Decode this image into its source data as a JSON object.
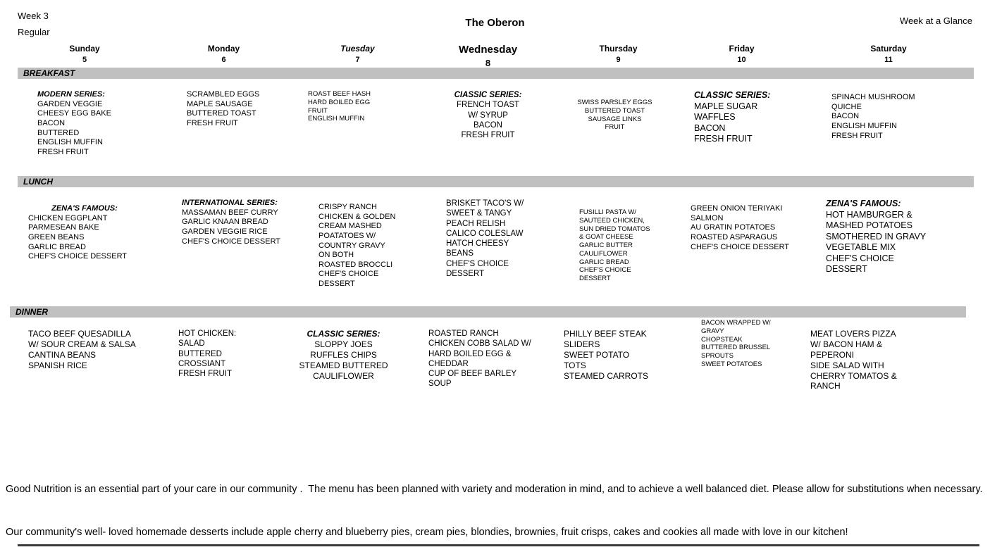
{
  "header": {
    "week": "Week 3",
    "menu_type": "Regular",
    "title": "The Oberon",
    "glance": "Week at a Glance"
  },
  "days": [
    {
      "name": "Sunday",
      "date": "5"
    },
    {
      "name": "Monday",
      "date": "6"
    },
    {
      "name": "Tuesday",
      "date": "7"
    },
    {
      "name": "Wednesday",
      "date": "8"
    },
    {
      "name": "Thursday",
      "date": "9"
    },
    {
      "name": "Friday",
      "date": "10"
    },
    {
      "name": "Saturday",
      "date": "11"
    }
  ],
  "sections": [
    {
      "label": "BREAKFAST",
      "cells": [
        {
          "series": "MODERN SERIES:",
          "items": [
            "GARDEN VEGGIE",
            "CHEESY EGG BAKE",
            "BACON",
            "BUTTERED",
            "ENGLISH MUFFIN",
            "FRESH FRUIT"
          ]
        },
        {
          "items": [
            "SCRAMBLED EGGS",
            "MAPLE SAUSAGE",
            "BUTTERED TOAST",
            "FRESH FRUIT"
          ]
        },
        {
          "items": [
            "ROAST BEEF HASH",
            "HARD BOILED EGG",
            "FRUIT",
            "ENGLISH MUFFIN"
          ]
        },
        {
          "series": "CIASSIC SERIES:",
          "items": [
            "FRENCH TOAST",
            "W/ SYRUP",
            "BACON",
            "FRESH FRUIT"
          ]
        },
        {
          "items": [
            "SWISS PARSLEY EGGS",
            "BUTTERED TOAST",
            "SAUSAGE LINKS",
            "FRUIT"
          ]
        },
        {
          "series": "CLASSIC SERIES:",
          "items": [
            "MAPLE SUGAR",
            "WAFFLES",
            "BACON",
            "FRESH FRUIT"
          ]
        },
        {
          "items": [
            "SPINACH MUSHROOM",
            "QUICHE",
            "BACON",
            "ENGLISH MUFFIN",
            "FRESH FRUIT"
          ]
        }
      ]
    },
    {
      "label": "LUNCH",
      "cells": [
        {
          "series": "ZENA'S FAMOUS:",
          "items": [
            "CHICKEN EGGPLANT",
            "PARMESEAN BAKE",
            "GREEN BEANS",
            "GARLIC BREAD",
            "CHEF'S CHOICE DESSERT"
          ]
        },
        {
          "series": "INTERNATIONAL SERIES:",
          "items": [
            "MASSAMAN BEEF CURRY",
            "GARLIC KNAAN BREAD",
            "GARDEN VEGGIE RICE",
            "CHEF'S CHOICE DESSERT"
          ]
        },
        {
          "items": [
            "CRISPY RANCH",
            "CHICKEN & GOLDEN",
            "CREAM MASHED",
            "POATATOES W/",
            "COUNTRY GRAVY",
            "ON BOTH",
            "ROASTED BROCCLI",
            "CHEF'S CHOICE",
            "DESSERT"
          ]
        },
        {
          "items": [
            "BRISKET TACO'S W/",
            "SWEET & TANGY",
            "PEACH RELISH",
            "CALICO COLESLAW",
            "HATCH CHEESY",
            "BEANS",
            "CHEF'S CHOICE",
            "DESSERT"
          ]
        },
        {
          "items": [
            "FUSILLI PASTA W/",
            "SAUTEED CHICKEN,",
            "SUN DRIED TOMATOS",
            "& GOAT CHEESE",
            "GARLIC BUTTER",
            "CAULIFLOWER",
            "GARLIC BREAD",
            "CHEF'S CHOICE",
            "DESSERT"
          ]
        },
        {
          "items": [
            "GREEN ONION TERIYAKI",
            "SALMON",
            "AU GRATIN POTATOES",
            "ROASTED ASPARAGUS",
            "CHEF'S CHOICE DESSERT"
          ]
        },
        {
          "series": "ZENA'S FAMOUS:",
          "items": [
            "HOT HAMBURGER &",
            "MASHED POTATOES",
            "SMOTHERED IN GRAVY",
            "VEGETABLE MIX",
            "CHEF'S CHOICE",
            "DESSERT"
          ]
        }
      ]
    },
    {
      "label": "DINNER",
      "cells": [
        {
          "items": [
            "TACO BEEF QUESADILLA",
            "W/ SOUR CREAM & SALSA",
            "CANTINA BEANS",
            "SPANISH RICE"
          ]
        },
        {
          "items": [
            "HOT CHICKEN:",
            "SALAD",
            "BUTTERED",
            "CROSSIANT",
            "FRESH FRUIT"
          ]
        },
        {
          "series": "CLASSIC SERIES:",
          "items": [
            "SLOPPY JOES",
            "RUFFLES CHIPS",
            "STEAMED BUTTERED",
            "CAULIFLOWER"
          ]
        },
        {
          "items": [
            "ROASTED RANCH",
            "CHICKEN COBB SALAD W/",
            "HARD BOILED EGG &",
            "CHEDDAR",
            "CUP OF BEEF BARLEY",
            "SOUP"
          ]
        },
        {
          "items": [
            "PHILLY BEEF STEAK",
            "SLIDERS",
            "SWEET POTATO",
            "TOTS",
            "STEAMED CARROTS"
          ]
        },
        {
          "items": [
            "BACON WRAPPED W/",
            "GRAVY",
            "CHOPSTEAK",
            "BUTTERED BRUSSEL",
            "SPROUTS",
            "SWEET POTATOES"
          ]
        },
        {
          "items": [
            "MEAT LOVERS PIZZA",
            "W/ BACON HAM &",
            "PEPERONI",
            "SIDE SALAD WITH",
            "CHERRY TOMATOS &",
            "RANCH"
          ]
        }
      ]
    }
  ],
  "footer": {
    "line1": "Good Nutrition is an essential part of your care in our community .  The menu has been planned with variety and moderation in mind, and to achieve a well balanced diet. Please allow for substitutions when necessary.",
    "line2": "Our community's well- loved homemade desserts include apple cherry and blueberry pies, cream pies, blondies, brownies, fruit crisps, cakes and cookies all made with love in our kitchen!"
  }
}
